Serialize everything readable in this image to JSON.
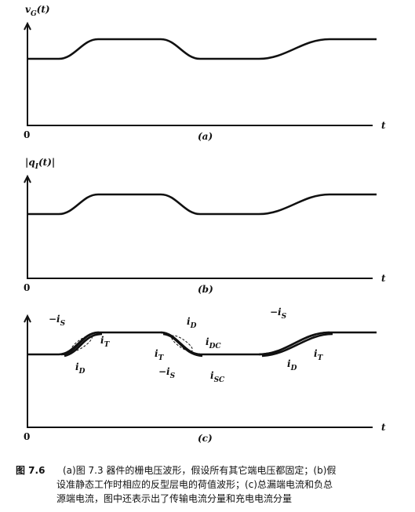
{
  "panels": [
    {
      "y_label": {
        "main": "v",
        "sub": "G",
        "tail": "(t)"
      },
      "origin": "0",
      "x_label": "t",
      "tag": "(a)"
    },
    {
      "y_label": {
        "main": "|q",
        "sub": "I",
        "tail": "(t)|"
      },
      "origin": "0",
      "x_label": "t",
      "tag": "(b)",
      "annotations": []
    },
    {
      "origin": "0",
      "x_label": "t",
      "tag": "(c)",
      "annotations": [
        {
          "main": "−i",
          "sub": "S"
        },
        {
          "main": "i",
          "sub": "T"
        },
        {
          "main": "i",
          "sub": "D"
        },
        {
          "main": "i",
          "sub": "D"
        },
        {
          "main": "i",
          "sub": "DC"
        },
        {
          "main": "i",
          "sub": "T"
        },
        {
          "main": "−i",
          "sub": "S"
        },
        {
          "main": "i",
          "sub": "SC"
        },
        {
          "main": "−i",
          "sub": "S"
        },
        {
          "main": "i",
          "sub": "T"
        },
        {
          "main": "i",
          "sub": "D"
        }
      ]
    }
  ],
  "caption": {
    "number": "图 7.6",
    "lines": [
      "(a)图 7.3 器件的栅电压波形，假设所有其它端电压都固定；(b)假",
      "设准静态工作时相应的反型层电的荷值波形；(c)总漏端电流和负总",
      "源端电流，图中还表示出了传输电流分量和充电电流分量"
    ]
  }
}
